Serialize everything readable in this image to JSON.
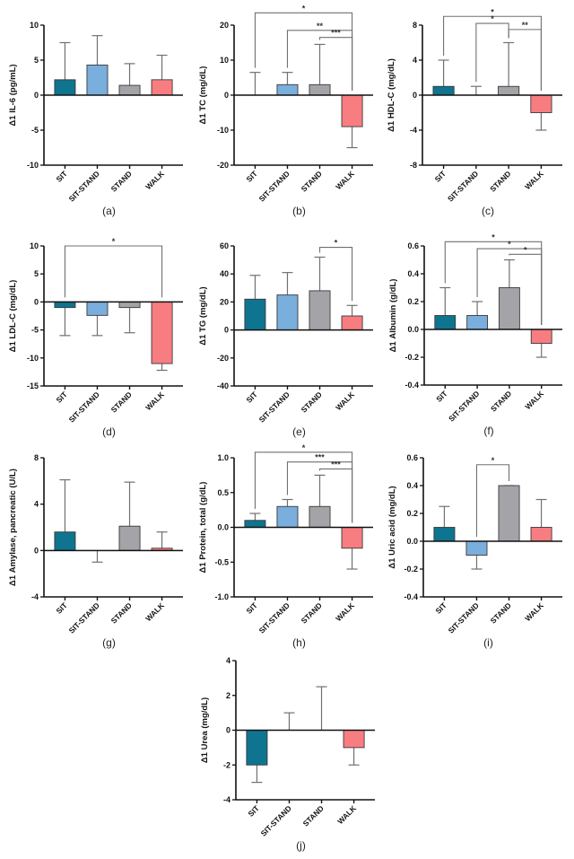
{
  "figure": {
    "colors": {
      "SIT": "#0e7490",
      "SIT-STAND": "#7aaedc",
      "STAND": "#a3a3a8",
      "WALK": "#f77d81",
      "axis": "#111111",
      "errorbar": "#707070",
      "bracket": "#707070"
    }
  },
  "chart_data": [
    {
      "id": "a",
      "type": "bar",
      "panel_label": "(a)",
      "ylabel": "Δ1 IL-6 (pg/mL)",
      "categories": [
        "SIT",
        "SIT-STAND",
        "STAND",
        "WALK"
      ],
      "values": [
        2.2,
        4.3,
        1.4,
        2.2
      ],
      "error_upper": [
        7.5,
        8.5,
        4.5,
        5.7
      ],
      "ylim": [
        -10,
        10
      ],
      "yticks": [
        10,
        5,
        0,
        -5,
        -10
      ],
      "tick_labels": [
        "10",
        "5",
        "0",
        "-5",
        "-10"
      ],
      "significance": []
    },
    {
      "id": "b",
      "type": "bar",
      "panel_label": "(b)",
      "ylabel": "Δ1 TC (mg/dL)",
      "categories": [
        "SIT",
        "SIT-STAND",
        "STAND",
        "WALK"
      ],
      "values": [
        0,
        3,
        3,
        -9
      ],
      "error_upper": [
        6.5,
        6.5,
        14.5,
        -15
      ],
      "ylim": [
        -20,
        20
      ],
      "yticks": [
        20,
        10,
        0,
        -10,
        -20
      ],
      "tick_labels": [
        "20",
        "10",
        "0",
        "-10",
        "-20"
      ],
      "significance": [
        {
          "from": 0,
          "to": 3,
          "label": "*",
          "level": 23.5
        },
        {
          "from": 1,
          "to": 3,
          "label": "**",
          "level": 18.5
        },
        {
          "from": 2,
          "to": 3,
          "label": "***",
          "level": 16.5
        }
      ]
    },
    {
      "id": "c",
      "type": "bar",
      "panel_label": "(c)",
      "ylabel": "Δ1 HDL-C (mg/dL)",
      "categories": [
        "SIT",
        "SIT-STAND",
        "STAND",
        "WALK"
      ],
      "values": [
        1,
        0,
        1,
        -2
      ],
      "error_upper": [
        4,
        1,
        6,
        -4
      ],
      "ylim": [
        -8,
        8
      ],
      "yticks": [
        8,
        4,
        0,
        -4,
        -8
      ],
      "tick_labels": [
        "8",
        "4",
        "0",
        "-4",
        "-8"
      ],
      "significance": [
        {
          "from": 0,
          "to": 3,
          "label": "*",
          "level": 9.0
        },
        {
          "from": 1,
          "to": 2,
          "label": "*",
          "level": 8.2
        },
        {
          "from": 2,
          "to": 3,
          "label": "**",
          "level": 7.5
        }
      ]
    },
    {
      "id": "d",
      "type": "bar",
      "panel_label": "(d)",
      "ylabel": "Δ1 LDL-C (mg/dL)",
      "categories": [
        "SIT",
        "SIT-STAND",
        "STAND",
        "WALK"
      ],
      "values": [
        -1,
        -2.4,
        -1,
        -11
      ],
      "error_upper": [
        -6,
        -6,
        -5.5,
        -12.2
      ],
      "ylim": [
        -15,
        10
      ],
      "yticks": [
        10,
        5,
        0,
        -5,
        -10,
        -15
      ],
      "tick_labels": [
        "10",
        "5",
        "0",
        "-5",
        "-10",
        "-15"
      ],
      "significance": [
        {
          "from": 0,
          "to": 3,
          "label": "*",
          "level": 10
        }
      ]
    },
    {
      "id": "e",
      "type": "bar",
      "panel_label": "(e)",
      "ylabel": "Δ1 TG (mg/dL)",
      "categories": [
        "SIT",
        "SIT-STAND",
        "STAND",
        "WALK"
      ],
      "values": [
        22,
        25,
        28,
        10
      ],
      "error_upper": [
        39,
        41,
        52,
        17.5
      ],
      "ylim": [
        -40,
        60
      ],
      "yticks": [
        60,
        40,
        20,
        0,
        -20,
        -40
      ],
      "tick_labels": [
        "60",
        "40",
        "20",
        "0",
        "-20",
        "-40"
      ],
      "significance": [
        {
          "from": 2,
          "to": 3,
          "label": "*",
          "level": 59
        }
      ]
    },
    {
      "id": "f",
      "type": "bar",
      "panel_label": "(f)",
      "ylabel": "Δ1 Albumin (g/dL)",
      "categories": [
        "SIT",
        "SIT-STAND",
        "STAND",
        "WALK"
      ],
      "values": [
        0.1,
        0.1,
        0.3,
        -0.1
      ],
      "error_upper": [
        0.3,
        0.2,
        0.5,
        -0.2
      ],
      "ylim": [
        -0.4,
        0.6
      ],
      "yticks": [
        0.6,
        0.4,
        0.2,
        0.0,
        -0.2,
        -0.4
      ],
      "tick_labels": [
        "0.6",
        "0.4",
        "0.2",
        "0.0",
        "-0.2",
        "-0.4"
      ],
      "significance": [
        {
          "from": 0,
          "to": 3,
          "label": "*",
          "level": 0.63
        },
        {
          "from": 1,
          "to": 3,
          "label": "*",
          "level": 0.58
        },
        {
          "from": 2,
          "to": 3,
          "label": "*",
          "level": 0.54
        }
      ]
    },
    {
      "id": "g",
      "type": "bar",
      "panel_label": "(g)",
      "ylabel": "Δ1 Amylase, pancreatic (U/L)",
      "categories": [
        "SIT",
        "SIT-STAND",
        "STAND",
        "WALK"
      ],
      "values": [
        1.6,
        0,
        2.1,
        0.2
      ],
      "error_upper": [
        6.1,
        -1,
        5.9,
        1.6
      ],
      "ylim": [
        -4,
        8
      ],
      "yticks": [
        8,
        4,
        0,
        -4
      ],
      "tick_labels": [
        "8",
        "4",
        "0",
        "-4"
      ],
      "significance": []
    },
    {
      "id": "h",
      "type": "bar",
      "panel_label": "(h)",
      "ylabel": "Δ1 Protein, total (g/dL)",
      "categories": [
        "SIT",
        "SIT-STAND",
        "STAND",
        "WALK"
      ],
      "values": [
        0.1,
        0.3,
        0.3,
        -0.3
      ],
      "error_upper": [
        0.2,
        0.4,
        0.75,
        -0.6
      ],
      "ylim": [
        -1.0,
        1.0
      ],
      "yticks": [
        1.0,
        0.5,
        0.0,
        -0.5,
        -1.0
      ],
      "tick_labels": [
        "1.0",
        "0.5",
        "0.0",
        "-0.5",
        "-1.0"
      ],
      "significance": [
        {
          "from": 0,
          "to": 3,
          "label": "*",
          "level": 1.08
        },
        {
          "from": 1,
          "to": 3,
          "label": "***",
          "level": 0.94
        },
        {
          "from": 2,
          "to": 3,
          "label": "***",
          "level": 0.84
        }
      ]
    },
    {
      "id": "i",
      "type": "bar",
      "panel_label": "(i)",
      "ylabel": "Δ1 Uric acid (mg/dL)",
      "categories": [
        "SIT",
        "SIT-STAND",
        "STAND",
        "WALK"
      ],
      "values": [
        0.1,
        -0.1,
        0.4,
        0.1
      ],
      "error_upper": [
        0.25,
        -0.2,
        0.4,
        0.3
      ],
      "ylim": [
        -0.4,
        0.6
      ],
      "yticks": [
        0.6,
        0.4,
        0.2,
        0.0,
        -0.2,
        -0.4
      ],
      "tick_labels": [
        "0.6",
        "0.4",
        "0.2",
        "0.0",
        "-0.2",
        "-0.4"
      ],
      "significance": [
        {
          "from": 1,
          "to": 2,
          "label": "*",
          "level": 0.55
        }
      ]
    },
    {
      "id": "j",
      "type": "bar",
      "panel_label": "(j)",
      "ylabel": "Δ1 Urea (mg/dL)",
      "categories": [
        "SIT",
        "SIT-STAND",
        "STAND",
        "WALK"
      ],
      "values": [
        -2,
        0,
        0,
        -1
      ],
      "error_upper": [
        -3,
        1,
        2.5,
        -2
      ],
      "ylim": [
        -4,
        4
      ],
      "yticks": [
        4,
        2,
        0,
        -2,
        -4
      ],
      "tick_labels": [
        "4",
        "2",
        "0",
        "-2",
        "-4"
      ],
      "significance": []
    }
  ]
}
